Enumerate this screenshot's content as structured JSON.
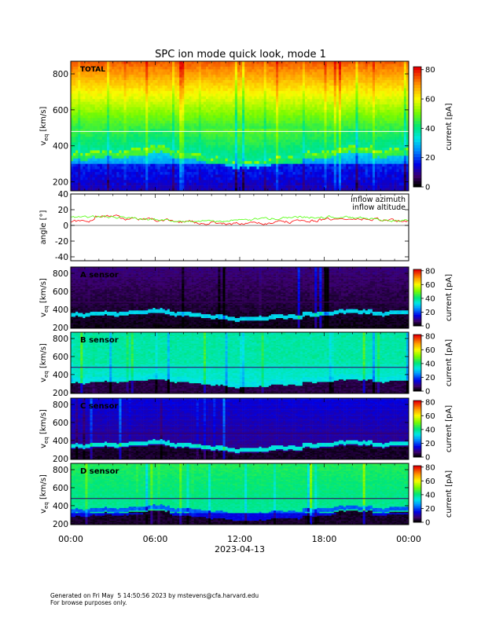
{
  "title": "SPC ion mode quick look, mode 1",
  "footer": {
    "line1": "Generated on Fri May  5 14:50:56 2023 by mstevens@cfa.harvard.edu",
    "line2": "For browse purposes only."
  },
  "colors": {
    "inflow_azimuth": "#ff2020",
    "inflow_altitude": "#60ff20"
  },
  "chart_data": [
    {
      "type": "heatmap",
      "panel_label": "TOTAL",
      "ylabel_main": "v",
      "ylabel_sub": "eq",
      "ylabel_unit": "[km/s]",
      "ylim": [
        150,
        870
      ],
      "yticks": [
        200,
        400,
        600,
        800
      ],
      "colorbar": {
        "label": "current [pA]",
        "range": [
          0,
          82
        ],
        "ticks": [
          0,
          20,
          40,
          60,
          80
        ]
      },
      "features": {
        "background": 0.88,
        "core_low": 200,
        "core_high": 320,
        "core_value": 0.16,
        "mid_value": 0.55,
        "beam": 0.5
      }
    },
    {
      "type": "line",
      "ylabel": "angle [°]",
      "ylim": [
        -45,
        40
      ],
      "yticks": [
        -40,
        -20,
        0,
        20,
        40
      ],
      "series": [
        {
          "name": "inflow azimuth",
          "mean": 5,
          "noise": 3
        },
        {
          "name": "inflow altitude",
          "mean": 8,
          "noise": 2.5
        }
      ]
    },
    {
      "type": "heatmap",
      "panel_label": "A sensor",
      "ylabel_main": "v",
      "ylabel_sub": "eq",
      "ylabel_unit": "[km/s]",
      "ylim": [
        190,
        870
      ],
      "yticks": [
        200,
        400,
        600,
        800
      ],
      "colorbar": {
        "label": "current [pA]",
        "range": [
          0,
          82
        ],
        "ticks": [
          0,
          20,
          40,
          60,
          80
        ]
      },
      "features": {
        "background": 0.06,
        "core_value": 0.3
      }
    },
    {
      "type": "heatmap",
      "panel_label": "B sensor",
      "ylabel_main": "v",
      "ylabel_sub": "eq",
      "ylabel_unit": "[km/s]",
      "ylim": [
        190,
        870
      ],
      "yticks": [
        200,
        400,
        600,
        800
      ],
      "colorbar": {
        "label": "current [pA]",
        "range": [
          0,
          82
        ],
        "ticks": [
          0,
          20,
          40,
          60,
          80
        ]
      },
      "features": {
        "background": 0.45,
        "core_value": 0.32
      }
    },
    {
      "type": "heatmap",
      "panel_label": "C sensor",
      "ylabel_main": "v",
      "ylabel_sub": "eq",
      "ylabel_unit": "[km/s]",
      "ylim": [
        190,
        870
      ],
      "yticks": [
        200,
        400,
        600,
        800
      ],
      "colorbar": {
        "label": "current [pA]",
        "range": [
          0,
          82
        ],
        "ticks": [
          0,
          20,
          40,
          60,
          80
        ]
      },
      "features": {
        "background": 0.14,
        "core_value": 0.33
      }
    },
    {
      "type": "heatmap",
      "panel_label": "D sensor",
      "ylabel_main": "v",
      "ylabel_sub": "eq",
      "ylabel_unit": "[km/s]",
      "ylim": [
        190,
        870
      ],
      "yticks": [
        200,
        400,
        600,
        800
      ],
      "colorbar": {
        "label": "current [pA]",
        "range": [
          0,
          82
        ],
        "ticks": [
          0,
          20,
          40,
          60,
          80
        ]
      },
      "features": {
        "background": 0.5,
        "core_value": 0.18
      }
    }
  ],
  "x_axis": {
    "ticks": [
      "00:00",
      "06:00",
      "12:00",
      "18:00",
      "00:00"
    ],
    "range_hours": [
      0,
      24
    ],
    "date": "2023-04-13"
  }
}
